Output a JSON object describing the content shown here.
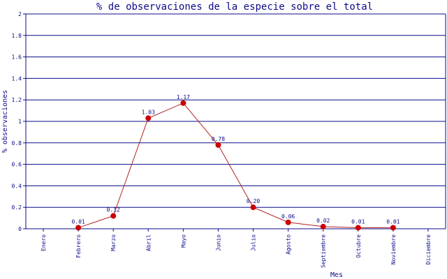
{
  "chart_data": {
    "type": "line",
    "title": "% de observaciones de la especie sobre el total",
    "xlabel": "Mes",
    "ylabel": "% observaciones",
    "categories": [
      "Enero",
      "Febrero",
      "Marzo",
      "Abril",
      "Mayo",
      "Junio",
      "Julio",
      "Agosto",
      "Septiembre",
      "Octubre",
      "Noviembre",
      "Diciembre"
    ],
    "series": [
      {
        "values": [
          null,
          0.01,
          0.12,
          1.03,
          1.17,
          0.78,
          0.2,
          0.06,
          0.02,
          0.01,
          0.01,
          null
        ],
        "labels": [
          "",
          "0.01",
          "0.12",
          "1.03",
          "1.17",
          "0.78",
          "0.20",
          "0.06",
          "0.02",
          "0.01",
          "0.01",
          ""
        ]
      }
    ],
    "ylim": [
      0,
      2
    ],
    "yticks": [
      "0",
      "0.2",
      "0.4",
      "0.6",
      "0.8",
      "1",
      "1.2",
      "1.4",
      "1.6",
      "1.8",
      "2"
    ],
    "grid": true,
    "colors": {
      "line": "#b22222",
      "marker": "#cc0000",
      "grid": "#0b0b8a",
      "text": "#0b0b8a"
    }
  }
}
